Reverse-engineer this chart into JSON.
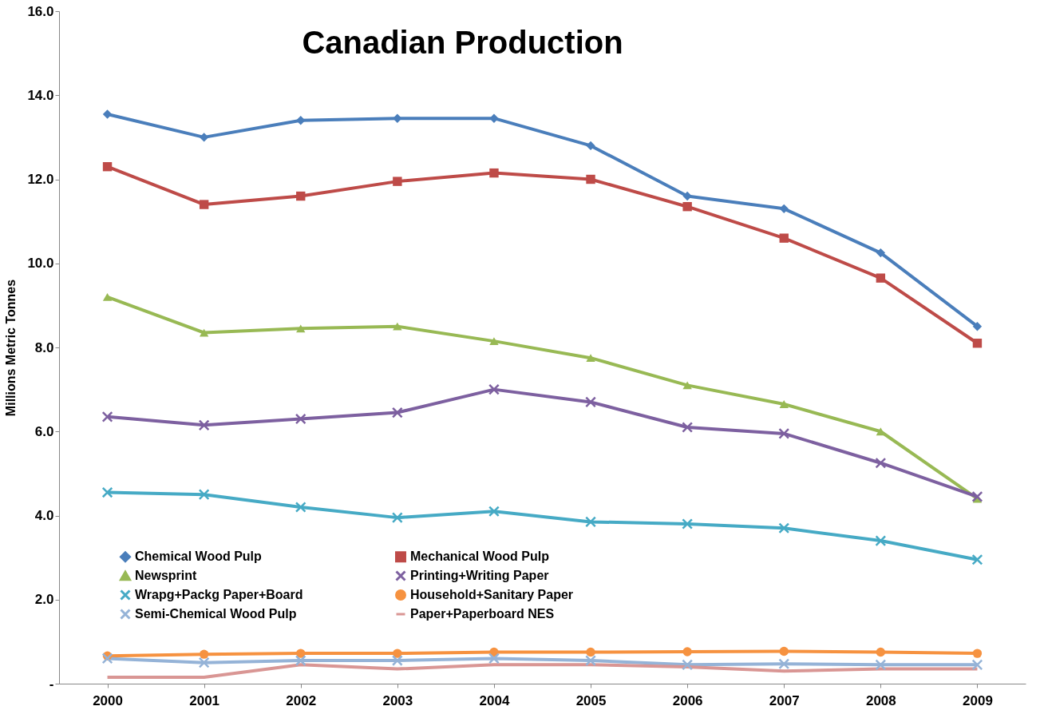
{
  "chart_data": {
    "type": "line",
    "title": "Canadian Production",
    "ylabel": "Millions Metric Tonnes",
    "categories": [
      "2000",
      "2001",
      "2002",
      "2003",
      "2004",
      "2005",
      "2006",
      "2007",
      "2008",
      "2009"
    ],
    "ylim": [
      0,
      16
    ],
    "yticks": [
      {
        "value": 0,
        "label": "-"
      },
      {
        "value": 2,
        "label": "2.0"
      },
      {
        "value": 4,
        "label": "4.0"
      },
      {
        "value": 6,
        "label": "6.0"
      },
      {
        "value": 8,
        "label": "8.0"
      },
      {
        "value": 10,
        "label": "10.0"
      },
      {
        "value": 12,
        "label": "12.0"
      },
      {
        "value": 14,
        "label": "14.0"
      },
      {
        "value": 16,
        "label": "16.0"
      }
    ],
    "grid": false,
    "legend": "bottom left",
    "series": [
      {
        "name": "Chemical Wood Pulp",
        "color": "#4a7ebb",
        "marker": "diamond",
        "values": [
          13.55,
          13.0,
          13.4,
          13.45,
          13.45,
          12.8,
          11.6,
          11.3,
          10.25,
          8.5
        ]
      },
      {
        "name": "Mechanical Wood Pulp",
        "color": "#be4b48",
        "marker": "square",
        "values": [
          12.3,
          11.4,
          11.6,
          11.95,
          12.15,
          12.0,
          11.35,
          10.6,
          9.65,
          8.1
        ]
      },
      {
        "name": "Newsprint",
        "color": "#98b954",
        "marker": "triangle",
        "values": [
          9.2,
          8.35,
          8.45,
          8.5,
          8.15,
          7.75,
          7.1,
          6.65,
          6.0,
          4.4
        ]
      },
      {
        "name": "Printing+Writing Paper",
        "color": "#7d60a0",
        "marker": "cross",
        "values": [
          6.35,
          6.15,
          6.3,
          6.45,
          7.0,
          6.7,
          6.1,
          5.95,
          5.25,
          4.45
        ]
      },
      {
        "name": "Wrapg+Packg Paper+Board",
        "color": "#46aac5",
        "marker": "cross",
        "values": [
          4.55,
          4.5,
          4.2,
          3.95,
          4.1,
          3.85,
          3.8,
          3.7,
          3.4,
          2.95
        ]
      },
      {
        "name": "Household+Sanitary Paper",
        "color": "#f69240",
        "marker": "circle",
        "values": [
          0.66,
          0.7,
          0.72,
          0.72,
          0.75,
          0.75,
          0.76,
          0.77,
          0.75,
          0.72
        ]
      },
      {
        "name": "Semi-Chemical Wood Pulp",
        "color": "#95b3d7",
        "marker": "cross",
        "values": [
          0.6,
          0.5,
          0.55,
          0.55,
          0.6,
          0.55,
          0.45,
          0.47,
          0.45,
          0.45
        ]
      },
      {
        "name": "Paper+Paperboard NES",
        "color": "#d99694",
        "marker": "none",
        "values": [
          0.15,
          0.15,
          0.45,
          0.35,
          0.45,
          0.45,
          0.4,
          0.3,
          0.35,
          0.35
        ]
      }
    ]
  }
}
